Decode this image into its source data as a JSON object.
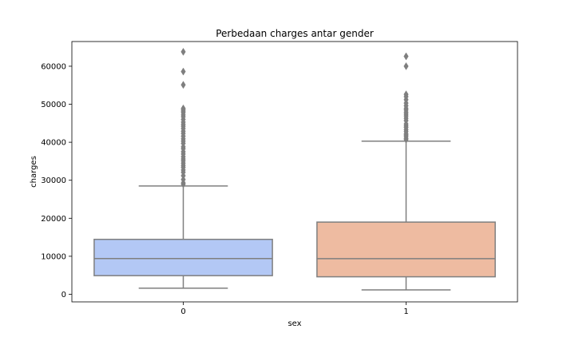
{
  "chart_data": {
    "type": "box",
    "title": "Perbedaan charges antar gender",
    "xlabel": "sex",
    "ylabel": "charges",
    "ylim": [
      -2000,
      66500
    ],
    "yticks": [
      0,
      10000,
      20000,
      30000,
      40000,
      50000,
      60000
    ],
    "grid": false,
    "categories": [
      "0",
      "1"
    ],
    "boxes": [
      {
        "category": "0",
        "color": "#b3c8f5",
        "whisker_low": 1610,
        "q1": 4900,
        "median": 9410,
        "q3": 14450,
        "whisker_high": 28500,
        "outliers": [
          28950,
          29300,
          30200,
          31200,
          32100,
          32700,
          33400,
          33900,
          34500,
          35100,
          35600,
          36200,
          36900,
          37500,
          38300,
          38800,
          39700,
          40300,
          40900,
          41600,
          42300,
          42900,
          43600,
          44200,
          44700,
          45300,
          46000,
          46700,
          47200,
          47800,
          48200,
          48600,
          48900,
          55100,
          58600,
          63800
        ]
      },
      {
        "category": "1",
        "color": "#eebba1",
        "whisker_low": 1150,
        "q1": 4600,
        "median": 9370,
        "q3": 18990,
        "whisker_high": 40300,
        "outliers": [
          40700,
          41000,
          41500,
          41900,
          42200,
          42800,
          43300,
          43900,
          44300,
          44800,
          45700,
          46300,
          46900,
          47400,
          47900,
          48500,
          48900,
          49600,
          50300,
          51200,
          52000,
          52600,
          60000,
          62600
        ]
      }
    ],
    "line_color": "#7f7f7f"
  }
}
